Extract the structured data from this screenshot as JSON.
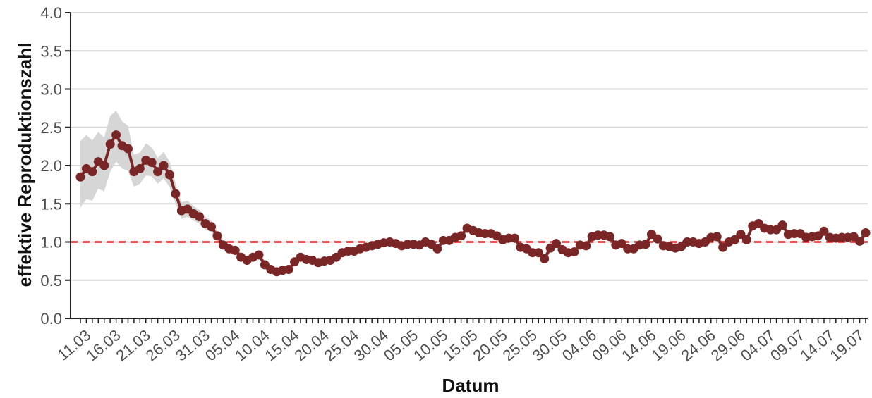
{
  "chart_data": {
    "type": "line",
    "title": "",
    "xlabel": "Datum",
    "ylabel": "effektive Reproduktionszahl",
    "ylim": [
      0,
      4
    ],
    "yticks": [
      "0.0",
      "0.5",
      "1.0",
      "1.5",
      "2.0",
      "2.5",
      "3.0",
      "3.5",
      "4.0"
    ],
    "xtick_labels": [
      "11.03",
      "16.03",
      "21.03",
      "26.03",
      "31.03",
      "05.04",
      "10.04",
      "15.04",
      "20.04",
      "25.04",
      "30.04",
      "05.05",
      "10.05",
      "15.05",
      "20.05",
      "25.05",
      "30.05",
      "04.06",
      "09.06",
      "14.06",
      "19.06",
      "24.06",
      "29.06",
      "04.07",
      "09.07",
      "14.07",
      "19.07"
    ],
    "x_start": "2020-03-11",
    "x_end": "2020-07-21",
    "grid": true,
    "reference_line": {
      "value": 1.0,
      "style": "dashed",
      "color": "#ee1c1c"
    },
    "colors": {
      "line": "#7a2526",
      "band": "#d6d6d6",
      "grid": "#d9d9d9",
      "axis": "#222222",
      "text": "#4d4d4d",
      "title": "#111111"
    },
    "series": [
      {
        "values": [
          1.85,
          1.96,
          1.92,
          2.05,
          2.0,
          2.28,
          2.4,
          2.26,
          2.22,
          1.92,
          1.96,
          2.07,
          2.04,
          1.92,
          2.0,
          1.88,
          1.63,
          1.41,
          1.43,
          1.37,
          1.33,
          1.24,
          1.2,
          1.08,
          0.96,
          0.91,
          0.89,
          0.8,
          0.76,
          0.8,
          0.83,
          0.7,
          0.64,
          0.61,
          0.63,
          0.64,
          0.74,
          0.8,
          0.77,
          0.76,
          0.73,
          0.75,
          0.76,
          0.8,
          0.86,
          0.88,
          0.88,
          0.91,
          0.93,
          0.95,
          0.97,
          0.99,
          1.0,
          0.98,
          0.95,
          0.97,
          0.97,
          0.96,
          1.0,
          0.97,
          0.91,
          1.02,
          1.02,
          1.06,
          1.08,
          1.18,
          1.15,
          1.12,
          1.11,
          1.11,
          1.08,
          1.03,
          1.05,
          1.05,
          0.93,
          0.91,
          0.86,
          0.86,
          0.78,
          0.92,
          0.98,
          0.9,
          0.86,
          0.87,
          0.96,
          0.95,
          1.07,
          1.09,
          1.09,
          1.07,
          0.96,
          0.98,
          0.91,
          0.91,
          0.96,
          0.97,
          1.1,
          1.04,
          0.95,
          0.94,
          0.92,
          0.94,
          1.0,
          1.0,
          0.98,
          1.0,
          1.06,
          1.07,
          0.93,
          1.0,
          1.03,
          1.1,
          1.03,
          1.21,
          1.24,
          1.18,
          1.16,
          1.16,
          1.22,
          1.1,
          1.11,
          1.11,
          1.06,
          1.07,
          1.08,
          1.14,
          1.06,
          1.05,
          1.06,
          1.06,
          1.07,
          1.01,
          1.12
        ],
        "lower": [
          1.45,
          1.56,
          1.54,
          1.7,
          1.66,
          1.92,
          2.05,
          1.96,
          1.93,
          1.72,
          1.76,
          1.87,
          1.86,
          1.76,
          1.83,
          1.72,
          1.5,
          1.3,
          1.33,
          1.28,
          1.24,
          1.16,
          1.13,
          1.02,
          0.91,
          0.86,
          0.84,
          0.76,
          0.72,
          0.76,
          0.78,
          0.66,
          0.6,
          0.57,
          0.59,
          0.6,
          0.69,
          0.76,
          0.73,
          0.72,
          0.69,
          0.71,
          0.72,
          0.76,
          0.82,
          0.84,
          0.84,
          0.87,
          0.89,
          0.91,
          0.93,
          0.95,
          0.96,
          0.94,
          0.91,
          0.93,
          0.93,
          0.92,
          0.96,
          0.93,
          0.87,
          0.98,
          0.98,
          1.02,
          1.04,
          1.13,
          1.1,
          1.07,
          1.06,
          1.06,
          1.03,
          0.98,
          1.0,
          1.0,
          0.88,
          0.86,
          0.81,
          0.81,
          0.73,
          0.87,
          0.93,
          0.85,
          0.81,
          0.82,
          0.91,
          0.9,
          1.02,
          1.04,
          1.04,
          1.02,
          0.91,
          0.93,
          0.86,
          0.86,
          0.91,
          0.92,
          1.05,
          0.99,
          0.9,
          0.89,
          0.87,
          0.89,
          0.95,
          0.95,
          0.93,
          0.95,
          1.01,
          1.02,
          0.88,
          0.95,
          0.98,
          1.05,
          0.98,
          1.16,
          1.19,
          1.13,
          1.11,
          1.11,
          1.17,
          1.05,
          1.06,
          1.06,
          1.01,
          1.02,
          1.03,
          1.09,
          1.01,
          1.0,
          1.01,
          1.01,
          1.02,
          0.96,
          1.07
        ],
        "upper": [
          2.32,
          2.4,
          2.33,
          2.44,
          2.37,
          2.65,
          2.72,
          2.58,
          2.52,
          2.14,
          2.17,
          2.29,
          2.24,
          2.1,
          2.18,
          2.05,
          1.77,
          1.52,
          1.54,
          1.47,
          1.42,
          1.33,
          1.28,
          1.15,
          1.02,
          0.97,
          0.94,
          0.85,
          0.8,
          0.84,
          0.88,
          0.75,
          0.68,
          0.65,
          0.67,
          0.68,
          0.79,
          0.84,
          0.81,
          0.8,
          0.77,
          0.79,
          0.8,
          0.84,
          0.9,
          0.92,
          0.92,
          0.95,
          0.97,
          0.99,
          1.01,
          1.03,
          1.04,
          1.02,
          0.99,
          1.01,
          1.01,
          1.0,
          1.04,
          1.01,
          0.95,
          1.06,
          1.06,
          1.1,
          1.12,
          1.23,
          1.2,
          1.17,
          1.16,
          1.16,
          1.13,
          1.08,
          1.1,
          1.1,
          0.98,
          0.96,
          0.91,
          0.91,
          0.83,
          0.97,
          1.03,
          0.95,
          0.91,
          0.92,
          1.01,
          1.0,
          1.12,
          1.14,
          1.14,
          1.12,
          1.01,
          1.03,
          0.96,
          0.96,
          1.01,
          1.02,
          1.15,
          1.09,
          1.0,
          0.99,
          0.97,
          0.99,
          1.05,
          1.05,
          1.03,
          1.05,
          1.11,
          1.12,
          0.98,
          1.05,
          1.08,
          1.15,
          1.08,
          1.26,
          1.29,
          1.23,
          1.21,
          1.21,
          1.27,
          1.15,
          1.16,
          1.16,
          1.11,
          1.12,
          1.13,
          1.19,
          1.11,
          1.1,
          1.11,
          1.11,
          1.12,
          1.06,
          1.17
        ]
      }
    ]
  }
}
